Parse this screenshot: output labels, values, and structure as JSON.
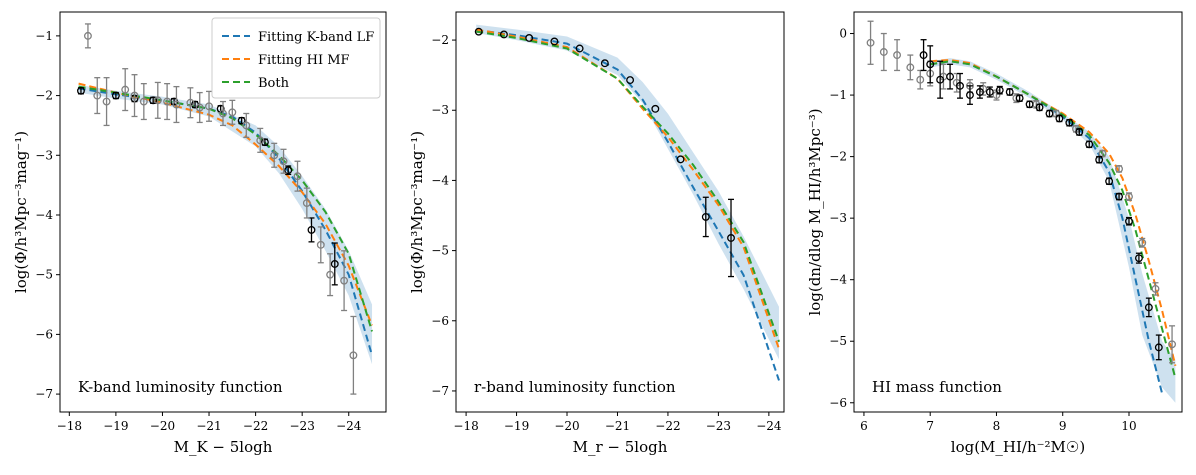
{
  "colors": {
    "kband": "#1f77b4",
    "himf": "#ff7f0e",
    "both": "#2ca02c",
    "band": "#1f77b4",
    "obs_main": "#000000",
    "obs_alt": "#808080"
  },
  "legend": [
    {
      "key": "kband",
      "label": "Fitting K-band LF"
    },
    {
      "key": "himf",
      "label": "Fitting HI MF"
    },
    {
      "key": "both",
      "label": "Both"
    }
  ],
  "chart_data": [
    {
      "type": "line",
      "panel_label": "K-band luminosity function",
      "xlabel": "M_K − 5logh",
      "ylabel": "log(Φ/h³Mpc⁻³mag⁻¹)",
      "xlim": [
        -17.8,
        -24.8
      ],
      "ylim": [
        -7.3,
        -0.6
      ],
      "xticks": [
        -18,
        -19,
        -20,
        -21,
        -22,
        -23,
        -24
      ],
      "xtick_labels": [
        "−18",
        "−19",
        "−20",
        "−21",
        "−22",
        "−23",
        "−24"
      ],
      "yticks": [
        -1,
        -2,
        -3,
        -4,
        -5,
        -6,
        -7
      ],
      "ytick_labels": [
        "−1",
        "−2",
        "−3",
        "−4",
        "−5",
        "−6",
        "−7"
      ],
      "band": {
        "x": [
          -18.2,
          -19,
          -20,
          -21,
          -22,
          -22.5,
          -23,
          -23.5,
          -24,
          -24.5
        ],
        "lower": [
          -1.95,
          -2.05,
          -2.15,
          -2.35,
          -2.85,
          -3.3,
          -3.9,
          -4.6,
          -5.35,
          -6.5
        ],
        "upper": [
          -1.82,
          -1.92,
          -2.02,
          -2.15,
          -2.5,
          -2.85,
          -3.35,
          -3.9,
          -4.6,
          -5.5
        ]
      },
      "series": [
        {
          "key": "kband",
          "x": [
            -18.2,
            -19,
            -20,
            -21,
            -21.5,
            -22,
            -22.5,
            -23,
            -23.5,
            -24,
            -24.5
          ],
          "y": [
            -1.88,
            -1.98,
            -2.08,
            -2.22,
            -2.35,
            -2.62,
            -3.05,
            -3.6,
            -4.25,
            -5.0,
            -6.35
          ]
        },
        {
          "key": "himf",
          "x": [
            -18.2,
            -19,
            -20,
            -21,
            -21.5,
            -22,
            -22.5,
            -23,
            -23.5,
            -24,
            -24.5
          ],
          "y": [
            -1.8,
            -1.95,
            -2.12,
            -2.32,
            -2.5,
            -2.82,
            -3.18,
            -3.62,
            -4.15,
            -4.85,
            -5.85
          ]
        },
        {
          "key": "both",
          "x": [
            -18.2,
            -19,
            -20,
            -21,
            -21.5,
            -22,
            -22.5,
            -23,
            -23.5,
            -24,
            -24.5
          ],
          "y": [
            -1.85,
            -1.95,
            -2.08,
            -2.22,
            -2.38,
            -2.65,
            -3.0,
            -3.42,
            -3.95,
            -4.65,
            -5.95
          ]
        }
      ],
      "observations": [
        {
          "style": "obs_main",
          "x": [
            -18.25,
            -19.0,
            -19.4,
            -19.8,
            -20.25,
            -20.7,
            -21.25,
            -21.7,
            -22.2,
            -22.7,
            -23.2,
            -23.7
          ],
          "y": [
            -1.92,
            -2.0,
            -2.05,
            -2.08,
            -2.1,
            -2.15,
            -2.22,
            -2.42,
            -2.78,
            -3.25,
            -4.25,
            -4.82
          ],
          "err": [
            0.05,
            0.05,
            0.05,
            0.05,
            0.05,
            0.05,
            0.05,
            0.05,
            0.05,
            0.07,
            0.2,
            0.35
          ]
        },
        {
          "style": "obs_alt",
          "x": [
            -18.4,
            -18.6,
            -18.8,
            -19.2,
            -19.4,
            -19.6,
            -19.9,
            -20.1,
            -20.3,
            -20.6,
            -20.8,
            -21.0,
            -21.3,
            -21.5,
            -21.8,
            -22.1,
            -22.4,
            -22.6,
            -22.9,
            -23.1,
            -23.4,
            -23.6,
            -23.9,
            -24.1
          ],
          "y": [
            -1.0,
            -2.0,
            -2.1,
            -1.9,
            -2.0,
            -2.1,
            -2.08,
            -2.1,
            -2.15,
            -2.12,
            -2.2,
            -2.18,
            -2.3,
            -2.28,
            -2.5,
            -2.75,
            -3.0,
            -3.1,
            -3.35,
            -3.8,
            -4.5,
            -5.0,
            -5.1,
            -6.35
          ],
          "err": [
            0.2,
            0.3,
            0.4,
            0.35,
            0.35,
            0.3,
            0.3,
            0.3,
            0.3,
            0.25,
            0.25,
            0.25,
            0.2,
            0.2,
            0.2,
            0.2,
            0.2,
            0.2,
            0.25,
            0.25,
            0.3,
            0.35,
            0.5,
            0.65
          ]
        }
      ]
    },
    {
      "type": "line",
      "panel_label": "r-band luminosity function",
      "xlabel": "M_r − 5logh",
      "ylabel": "log(Φ/h³Mpc⁻³mag⁻¹)",
      "xlim": [
        -17.8,
        -24.3
      ],
      "ylim": [
        -7.3,
        -1.6
      ],
      "xticks": [
        -18,
        -19,
        -20,
        -21,
        -22,
        -23,
        -24
      ],
      "xtick_labels": [
        "−18",
        "−19",
        "−20",
        "−21",
        "−22",
        "−23",
        "−24"
      ],
      "yticks": [
        -2,
        -3,
        -4,
        -5,
        -6,
        -7
      ],
      "ytick_labels": [
        "−2",
        "−3",
        "−4",
        "−5",
        "−6",
        "−7"
      ],
      "band": {
        "x": [
          -18.2,
          -19,
          -20,
          -21,
          -21.5,
          -22,
          -22.5,
          -23,
          -23.5,
          -24.2
        ],
        "lower": [
          -1.9,
          -2.0,
          -2.15,
          -2.5,
          -2.9,
          -3.55,
          -4.2,
          -4.9,
          -5.55,
          -6.55
        ],
        "upper": [
          -1.78,
          -1.85,
          -1.95,
          -2.25,
          -2.6,
          -3.05,
          -3.6,
          -4.15,
          -4.8,
          -5.8
        ]
      },
      "series": [
        {
          "key": "kband",
          "x": [
            -18.2,
            -19,
            -20,
            -21,
            -21.5,
            -22,
            -22.5,
            -23,
            -23.5,
            -24.2
          ],
          "y": [
            -1.86,
            -1.93,
            -2.05,
            -2.42,
            -2.85,
            -3.45,
            -4.1,
            -4.72,
            -5.35,
            -6.85
          ]
        },
        {
          "key": "himf",
          "x": [
            -18.2,
            -19,
            -20,
            -21,
            -21.5,
            -22,
            -22.5,
            -23,
            -23.5,
            -24.2
          ],
          "y": [
            -1.85,
            -1.95,
            -2.1,
            -2.55,
            -2.98,
            -3.38,
            -3.85,
            -4.35,
            -4.95,
            -6.4
          ]
        },
        {
          "key": "both",
          "x": [
            -18.2,
            -19,
            -20,
            -21,
            -21.5,
            -22,
            -22.5,
            -23,
            -23.5,
            -24.2
          ],
          "y": [
            -1.88,
            -1.97,
            -2.12,
            -2.55,
            -2.95,
            -3.33,
            -3.78,
            -4.3,
            -4.88,
            -6.3
          ]
        }
      ],
      "observations": [
        {
          "style": "obs_main",
          "x": [
            -18.25,
            -18.75,
            -19.25,
            -19.75,
            -20.25,
            -20.75,
            -21.25,
            -21.75,
            -22.25,
            -22.75,
            -23.25
          ],
          "y": [
            -1.88,
            -1.92,
            -1.97,
            -2.02,
            -2.12,
            -2.33,
            -2.57,
            -2.98,
            -3.7,
            -4.52,
            -4.82
          ]
        },
        {
          "style": "obs_main_err",
          "x": [
            -22.75,
            -23.25
          ],
          "y": [
            -4.52,
            -4.82
          ],
          "err": [
            0.28,
            0.55
          ]
        }
      ]
    },
    {
      "type": "line",
      "panel_label": "HI mass function",
      "xlabel": "log(M_HI/h⁻²M☉)",
      "ylabel": "log(dn/dlog M_HI/h³Mpc⁻³)",
      "xlim": [
        5.85,
        10.8
      ],
      "ylim": [
        -6.15,
        0.35
      ],
      "xticks": [
        6,
        7,
        8,
        9,
        10
      ],
      "xtick_labels": [
        "6",
        "7",
        "8",
        "9",
        "10"
      ],
      "yticks": [
        0,
        -1,
        -2,
        -3,
        -4,
        -5,
        -6
      ],
      "ytick_labels": [
        "0",
        "−1",
        "−2",
        "−3",
        "−4",
        "−5",
        "−6"
      ],
      "band": {
        "x": [
          7.0,
          7.3,
          7.6,
          8.0,
          8.5,
          9.0,
          9.4,
          9.7,
          10.0,
          10.2,
          10.5,
          10.7
        ],
        "lower": [
          -0.55,
          -0.5,
          -0.55,
          -0.75,
          -1.05,
          -1.4,
          -1.8,
          -2.4,
          -3.8,
          -4.9,
          -5.75,
          -6.0
        ],
        "upper": [
          -0.45,
          -0.4,
          -0.45,
          -0.65,
          -0.95,
          -1.3,
          -1.6,
          -2.0,
          -3.0,
          -3.9,
          -5.0,
          -5.3
        ]
      },
      "series": [
        {
          "key": "kband",
          "x": [
            7.0,
            7.3,
            7.6,
            8.0,
            8.5,
            9.0,
            9.4,
            9.7,
            9.9,
            10.1,
            10.3,
            10.5
          ],
          "y": [
            -0.5,
            -0.45,
            -0.5,
            -0.7,
            -1.0,
            -1.35,
            -1.7,
            -2.25,
            -3.0,
            -4.0,
            -5.0,
            -5.85
          ]
        },
        {
          "key": "himf",
          "x": [
            7.0,
            7.3,
            7.6,
            8.0,
            8.5,
            9.0,
            9.4,
            9.7,
            9.9,
            10.1,
            10.3,
            10.5,
            10.7
          ],
          "y": [
            -0.45,
            -0.43,
            -0.48,
            -0.7,
            -1.0,
            -1.3,
            -1.6,
            -1.95,
            -2.35,
            -2.95,
            -3.7,
            -4.5,
            -5.4
          ]
        },
        {
          "key": "both",
          "x": [
            7.0,
            7.3,
            7.6,
            8.0,
            8.5,
            9.0,
            9.4,
            9.7,
            9.9,
            10.1,
            10.3,
            10.5,
            10.7
          ],
          "y": [
            -0.5,
            -0.45,
            -0.5,
            -0.7,
            -1.0,
            -1.32,
            -1.65,
            -2.1,
            -2.55,
            -3.2,
            -4.0,
            -4.8,
            -5.6
          ]
        }
      ],
      "observations": [
        {
          "style": "obs_alt",
          "x": [
            6.1,
            6.3,
            6.5,
            6.7,
            6.85,
            7.0,
            7.2,
            7.4,
            7.6,
            7.8,
            8.0,
            8.3,
            8.6,
            8.9,
            9.2,
            9.6,
            9.85,
            10.0,
            10.2,
            10.4,
            10.65
          ],
          "y": [
            -0.15,
            -0.3,
            -0.35,
            -0.55,
            -0.75,
            -0.65,
            -0.7,
            -0.8,
            -0.85,
            -0.9,
            -1.0,
            -1.05,
            -1.15,
            -1.3,
            -1.55,
            -1.95,
            -2.2,
            -2.65,
            -3.4,
            -4.15,
            -5.05
          ],
          "err": [
            0.35,
            0.3,
            0.25,
            0.2,
            0.15,
            0.2,
            0.2,
            0.15,
            0.1,
            0.1,
            0.08,
            0.07,
            0.06,
            0.05,
            0.05,
            0.05,
            0.05,
            0.06,
            0.07,
            0.1,
            0.3
          ]
        },
        {
          "style": "obs_main",
          "x": [
            6.9,
            7.0,
            7.15,
            7.3,
            7.45,
            7.6,
            7.75,
            7.9,
            8.05,
            8.2,
            8.35,
            8.5,
            8.65,
            8.8,
            8.95,
            9.1,
            9.25,
            9.4,
            9.55,
            9.7,
            9.85,
            10.0,
            10.15,
            10.3,
            10.45
          ],
          "y": [
            -0.35,
            -0.5,
            -0.75,
            -0.7,
            -0.85,
            -1.0,
            -0.95,
            -0.95,
            -0.92,
            -0.95,
            -1.05,
            -1.15,
            -1.2,
            -1.3,
            -1.38,
            -1.45,
            -1.6,
            -1.8,
            -2.05,
            -2.4,
            -2.65,
            -3.05,
            -3.65,
            -4.45,
            -5.1
          ],
          "err": [
            0.25,
            0.3,
            0.3,
            0.2,
            0.2,
            0.15,
            0.1,
            0.08,
            0.06,
            0.05,
            0.05,
            0.05,
            0.05,
            0.05,
            0.05,
            0.05,
            0.05,
            0.05,
            0.05,
            0.05,
            0.05,
            0.06,
            0.08,
            0.15,
            0.2
          ]
        }
      ]
    }
  ]
}
